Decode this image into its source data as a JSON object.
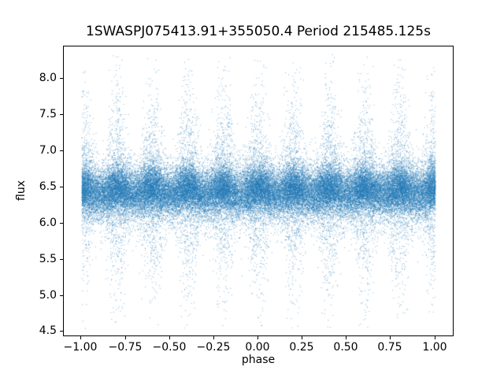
{
  "chart_data": {
    "type": "scatter",
    "title": "1SWASPJ075413.91+355050.4 Period 215485.125s",
    "xlabel": "phase",
    "ylabel": "flux",
    "xlim": [
      -1.1,
      1.1
    ],
    "ylim": [
      4.45,
      8.45
    ],
    "xticks": [
      -1.0,
      -0.75,
      -0.5,
      -0.25,
      0.0,
      0.25,
      0.5,
      0.75,
      1.0
    ],
    "xtick_labels": [
      "−1.00",
      "−0.75",
      "−0.50",
      "−0.25",
      "0.00",
      "0.25",
      "0.50",
      "0.75",
      "1.00"
    ],
    "yticks": [
      4.5,
      5.0,
      5.5,
      6.0,
      6.5,
      7.0,
      7.5,
      8.0
    ],
    "ytick_labels": [
      "4.5",
      "5.0",
      "5.5",
      "6.0",
      "6.5",
      "7.0",
      "7.5",
      "8.0"
    ],
    "marker_color": "#1f77b4",
    "marker_alpha": 0.55,
    "grid": false,
    "legend": null,
    "model": {
      "description": "phase-folded light curve: dense core near mean flux with periodic vertical bands of larger scatter",
      "seed": 7,
      "n_points": 60000,
      "x_range": [
        -1.0,
        1.0
      ],
      "band_spacing_phase": 0.2,
      "density_base": 0.55,
      "density_band": 0.45,
      "mean_flux": 6.45,
      "mean_modulation": 0.04,
      "core_sigma": 0.16,
      "mid_sigma_base": 0.22,
      "mid_sigma_band": 0.35,
      "tail_sigma_base": 0.3,
      "tail_sigma_band": 0.75,
      "mix_weights": [
        0.72,
        0.18,
        0.1
      ],
      "y_clip": [
        4.55,
        8.35
      ]
    }
  }
}
